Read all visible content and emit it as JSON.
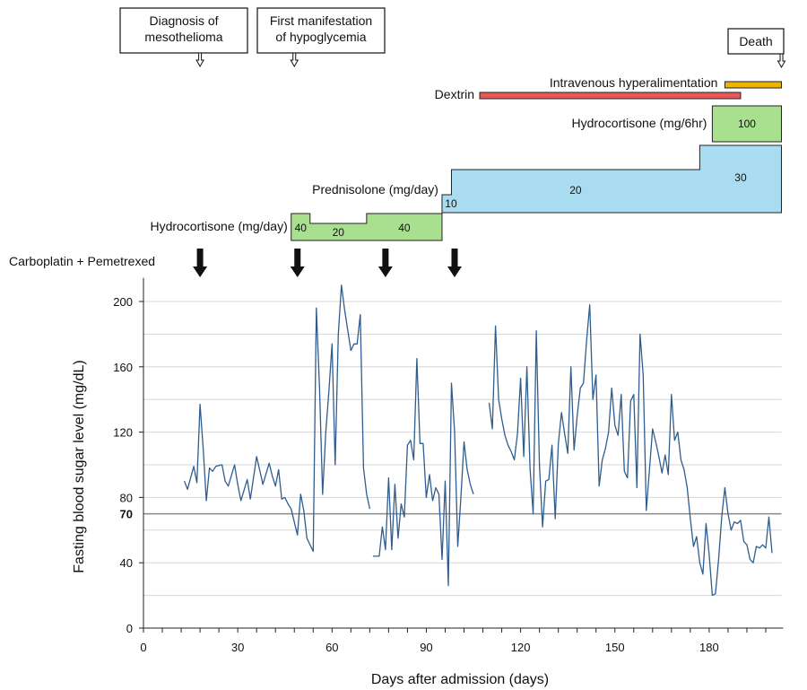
{
  "chart_data": {
    "type": "line",
    "ylabel": "Fasting blood sugar level (mg/dL)",
    "xlabel": "Days after admission (days)",
    "xlim": [
      0,
      203
    ],
    "ylim": [
      0,
      210
    ],
    "x_ticks": [
      "0",
      "30",
      "60",
      "90",
      "120",
      "150",
      "180"
    ],
    "y_ticks": [
      "0",
      "40",
      "80",
      "120",
      "160",
      "200"
    ],
    "reference_line": {
      "y": 70,
      "label": "70"
    },
    "line_color": "#2f5d8f",
    "segments": [
      [
        [
          13,
          90
        ],
        [
          14,
          85
        ],
        [
          16,
          99
        ],
        [
          17,
          89
        ],
        [
          18,
          137
        ],
        [
          19,
          110
        ],
        [
          20,
          78
        ],
        [
          21,
          98
        ],
        [
          22,
          96
        ],
        [
          23,
          99
        ],
        [
          25,
          100
        ],
        [
          26,
          90
        ],
        [
          27,
          87
        ],
        [
          29,
          100
        ],
        [
          30,
          88
        ],
        [
          31,
          78
        ],
        [
          33,
          91
        ],
        [
          34,
          79
        ],
        [
          36,
          105
        ],
        [
          38,
          88
        ],
        [
          40,
          101
        ],
        [
          41,
          93
        ],
        [
          42,
          87
        ],
        [
          43,
          97
        ],
        [
          44,
          79
        ],
        [
          45,
          80
        ],
        [
          46,
          76
        ],
        [
          47,
          73
        ],
        [
          49,
          57
        ],
        [
          50,
          82
        ],
        [
          51,
          72
        ],
        [
          52,
          55
        ],
        [
          54,
          47
        ],
        [
          55,
          196
        ],
        [
          56,
          148
        ],
        [
          57,
          82
        ],
        [
          58,
          120
        ],
        [
          59,
          145
        ],
        [
          60,
          174
        ],
        [
          61,
          100
        ],
        [
          62,
          180
        ],
        [
          63,
          210
        ],
        [
          64,
          195
        ],
        [
          66,
          170
        ],
        [
          67,
          174
        ],
        [
          68,
          174
        ],
        [
          69,
          192
        ],
        [
          70,
          98
        ],
        [
          71,
          82
        ],
        [
          72,
          73
        ]
      ],
      [
        [
          73,
          44
        ],
        [
          75,
          44
        ],
        [
          76,
          62
        ],
        [
          77,
          48
        ],
        [
          78,
          92
        ],
        [
          79,
          48
        ],
        [
          80,
          88
        ],
        [
          81,
          55
        ],
        [
          82,
          76
        ],
        [
          83,
          68
        ],
        [
          84,
          112
        ],
        [
          85,
          115
        ],
        [
          86,
          103
        ],
        [
          87,
          165
        ],
        [
          88,
          113
        ],
        [
          89,
          113
        ],
        [
          90,
          80
        ],
        [
          91,
          94
        ],
        [
          92,
          78
        ],
        [
          93,
          86
        ],
        [
          94,
          82
        ],
        [
          95,
          42
        ],
        [
          96,
          90
        ],
        [
          97,
          26
        ],
        [
          98,
          150
        ],
        [
          99,
          120
        ],
        [
          100,
          50
        ],
        [
          101,
          80
        ],
        [
          102,
          114
        ],
        [
          103,
          97
        ],
        [
          104,
          88
        ],
        [
          105,
          82
        ]
      ]
    ],
    "gap_from": 105,
    "gap_to": 110,
    "segment3": [
      [
        110,
        138
      ],
      [
        111,
        122
      ],
      [
        112,
        185
      ],
      [
        113,
        140
      ],
      [
        114,
        128
      ],
      [
        115,
        118
      ],
      [
        116,
        112
      ],
      [
        117,
        108
      ],
      [
        118,
        103
      ],
      [
        119,
        119
      ],
      [
        120,
        153
      ],
      [
        121,
        105
      ],
      [
        122,
        160
      ],
      [
        123,
        98
      ],
      [
        124,
        70
      ],
      [
        125,
        182
      ],
      [
        126,
        100
      ],
      [
        127,
        62
      ],
      [
        128,
        90
      ],
      [
        129,
        91
      ],
      [
        130,
        112
      ],
      [
        131,
        67
      ],
      [
        132,
        113
      ],
      [
        133,
        132
      ],
      [
        134,
        119
      ],
      [
        135,
        107
      ],
      [
        136,
        160
      ],
      [
        137,
        109
      ],
      [
        138,
        130
      ],
      [
        139,
        147
      ],
      [
        140,
        150
      ],
      [
        141,
        176
      ],
      [
        142,
        198
      ],
      [
        143,
        140
      ],
      [
        144,
        155
      ],
      [
        145,
        87
      ],
      [
        146,
        103
      ],
      [
        147,
        110
      ],
      [
        148,
        120
      ],
      [
        149,
        147
      ],
      [
        150,
        124
      ],
      [
        151,
        118
      ],
      [
        152,
        143
      ],
      [
        153,
        96
      ],
      [
        154,
        92
      ],
      [
        155,
        139
      ],
      [
        156,
        143
      ],
      [
        157,
        86
      ],
      [
        158,
        180
      ],
      [
        159,
        155
      ],
      [
        160,
        72
      ],
      [
        161,
        97
      ],
      [
        162,
        122
      ],
      [
        163,
        114
      ],
      [
        164,
        105
      ],
      [
        165,
        95
      ],
      [
        166,
        106
      ],
      [
        167,
        94
      ],
      [
        168,
        143
      ],
      [
        169,
        115
      ],
      [
        170,
        120
      ],
      [
        171,
        103
      ],
      [
        172,
        97
      ],
      [
        173,
        86
      ],
      [
        174,
        67
      ],
      [
        175,
        50
      ],
      [
        176,
        56
      ],
      [
        177,
        40
      ],
      [
        178,
        33
      ],
      [
        179,
        64
      ],
      [
        180,
        45
      ],
      [
        181,
        20
      ],
      [
        182,
        21
      ],
      [
        183,
        42
      ],
      [
        184,
        68
      ],
      [
        185,
        86
      ],
      [
        186,
        70
      ],
      [
        187,
        60
      ],
      [
        188,
        65
      ],
      [
        189,
        64
      ],
      [
        190,
        66
      ],
      [
        191,
        53
      ],
      [
        192,
        51
      ],
      [
        193,
        42
      ],
      [
        194,
        40
      ],
      [
        195,
        50
      ],
      [
        196,
        49
      ],
      [
        197,
        51
      ],
      [
        198,
        49
      ],
      [
        199,
        68
      ],
      [
        200,
        46
      ]
    ]
  },
  "events": [
    {
      "label_lines": [
        "Diagnosis of",
        "mesothelioma"
      ],
      "day": 18
    },
    {
      "label_lines": [
        "First manifestation",
        "of hypoglycemia"
      ],
      "day": 48
    },
    {
      "label_lines": [
        "Death"
      ],
      "day": 203
    }
  ],
  "chemo": {
    "label": "Carboplatin + Pemetrexed",
    "days": [
      18,
      49,
      77,
      99
    ]
  },
  "treatments": {
    "ivh": {
      "label": "Intravenous hyperalimentation",
      "start": 185,
      "end": 203,
      "color": "#f0b400"
    },
    "dextrin": {
      "label": "Dextrin",
      "start": 107,
      "end": 190,
      "color": "#e85a5a"
    },
    "hydro_6hr": {
      "label": "Hydrocortisone (mg/6hr)",
      "start": 181,
      "end": 203,
      "value": "100",
      "color": "#a8e090"
    },
    "prednisolone": {
      "label": "Prednisolone (mg/day)",
      "color": "#a9dcf0",
      "steps": [
        {
          "start": 95,
          "end": 98,
          "value": "10"
        },
        {
          "start": 98,
          "end": 177,
          "value": "20"
        },
        {
          "start": 177,
          "end": 203,
          "value": "30"
        }
      ]
    },
    "hydro_day": {
      "label": "Hydrocortisone (mg/day)",
      "color": "#a8e090",
      "steps": [
        {
          "start": 47,
          "end": 53,
          "value": "40"
        },
        {
          "start": 53,
          "end": 71,
          "value": "20"
        },
        {
          "start": 71,
          "end": 95,
          "value": "40"
        }
      ]
    }
  }
}
